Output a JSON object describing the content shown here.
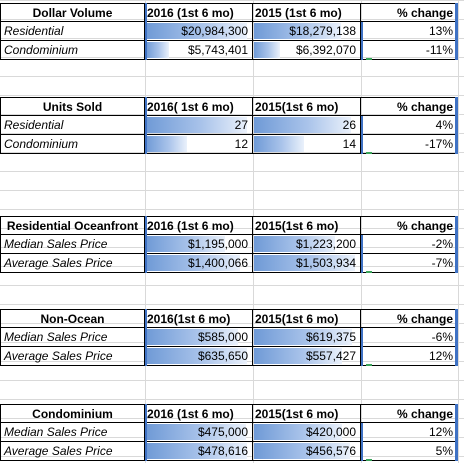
{
  "tables": [
    {
      "headers": [
        "Dollar Volume",
        "2016 (1st 6 mo)",
        "2015 (1st 6 mo)",
        "% change"
      ],
      "rows": [
        {
          "label": "Residential",
          "v2016": "$20,984,300",
          "v2015": "$18,279,138",
          "change": "13%",
          "bar2016": 1.0,
          "bar2015": 0.87
        },
        {
          "label": "Condominium",
          "v2016": "$5,743,401",
          "v2015": "$6,392,070",
          "change": "-11%",
          "bar2016": 0.27,
          "bar2015": 0.3
        }
      ]
    },
    {
      "headers": [
        "Units Sold",
        "2016( 1st 6 mo)",
        "2015(1st 6 mo)",
        "% change"
      ],
      "rows": [
        {
          "label": "Residential",
          "v2016": "27",
          "v2015": "26",
          "change": "4%",
          "bar2016": 1.0,
          "bar2015": 0.96
        },
        {
          "label": "Condominium",
          "v2016": "12",
          "v2015": "14",
          "change": "-17%",
          "bar2016": 0.44,
          "bar2015": 0.52
        }
      ]
    },
    {
      "headers": [
        "Residential Oceanfront",
        "2016 (1st 6 mo)",
        "2015(1st 6 mo)",
        "% change"
      ],
      "rows": [
        {
          "label": "Median Sales Price",
          "v2016": "$1,195,000",
          "v2015": "$1,223,200",
          "change": "-2%",
          "bar2016": 0.79,
          "bar2015": 0.81
        },
        {
          "label": "Average Sales Price",
          "v2016": "$1,400,066",
          "v2015": "$1,503,934",
          "change": "-7%",
          "bar2016": 0.93,
          "bar2015": 1.0
        }
      ]
    },
    {
      "headers": [
        "Non-Ocean",
        "2016(1st 6 mo)",
        "2015(1st 6 mo)",
        "% change"
      ],
      "rows": [
        {
          "label": "Median Sales Price",
          "v2016": "$585,000",
          "v2015": "$619,375",
          "change": "-6%",
          "bar2016": 0.92,
          "bar2015": 0.97
        },
        {
          "label": "Average Sales Price",
          "v2016": "$635,650",
          "v2015": "$557,427",
          "change": "12%",
          "bar2016": 1.0,
          "bar2015": 0.88
        }
      ]
    },
    {
      "headers": [
        "Condominium",
        "2016 (1st 6 mo)",
        "2015(1st 6 mo)",
        "% change"
      ],
      "rows": [
        {
          "label": "Median Sales Price",
          "v2016": "$475,000",
          "v2015": "$420,000",
          "change": "12%",
          "bar2016": 0.99,
          "bar2015": 0.88
        },
        {
          "label": "Average Sales Price",
          "v2016": "$478,616",
          "v2015": "$456,576",
          "change": "5%",
          "bar2016": 1.0,
          "bar2015": 0.95
        }
      ]
    }
  ],
  "colors": {
    "bar_dark": "#6f9ad6",
    "bar_light": "#eaf1fb",
    "selection_blue": "#3f72c4",
    "gridline": "#d9d9d9",
    "fill_handle_green": "#3aa45a"
  }
}
